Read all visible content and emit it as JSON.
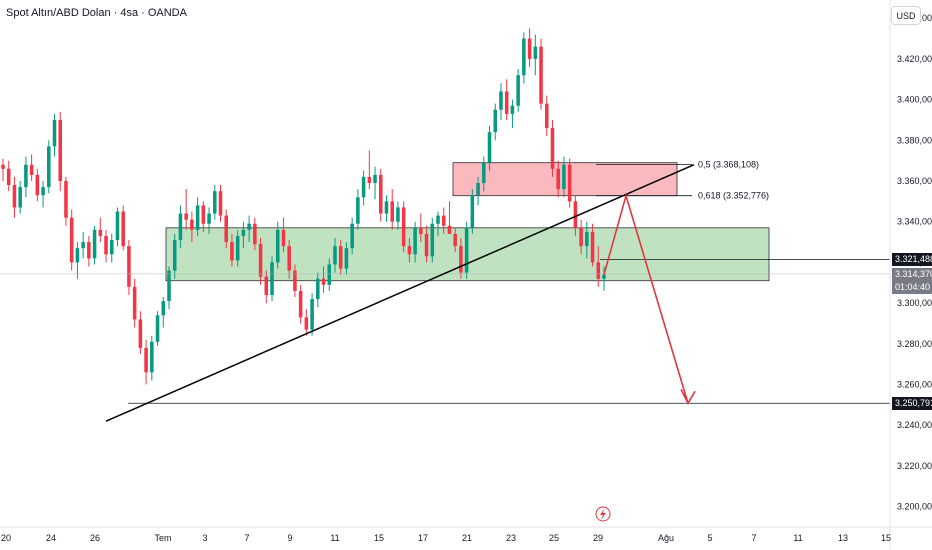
{
  "header": {
    "symbol_title": "Spot Altın/ABD Dolan · 4sa · OANDA"
  },
  "currency_button": {
    "label": "USD"
  },
  "chart_data": {
    "type": "candlestick",
    "title": "Spot Altın/ABD Dolan · 4sa · OANDA",
    "currency": "USD",
    "ylim": [
      3190,
      3445
    ],
    "y_ticks": [
      {
        "value": 3200,
        "label": "3.200,000"
      },
      {
        "value": 3220,
        "label": "3.220,000"
      },
      {
        "value": 3240,
        "label": "3.240,000"
      },
      {
        "value": 3260,
        "label": "3.260,000"
      },
      {
        "value": 3280,
        "label": "3.280,000"
      },
      {
        "value": 3300,
        "label": "3.300,000"
      },
      {
        "value": 3320,
        "label": "3.320,000"
      },
      {
        "value": 3340,
        "label": "3.340,000"
      },
      {
        "value": 3360,
        "label": "3.360,000"
      },
      {
        "value": 3380,
        "label": "3.380,000"
      },
      {
        "value": 3400,
        "label": "3.400,000"
      },
      {
        "value": 3420,
        "label": "3.420,000"
      },
      {
        "value": 3440,
        "label": "3.440,000"
      }
    ],
    "x_ticks": [
      "20",
      "24",
      "26",
      "Tem",
      "3",
      "7",
      "9",
      "11",
      "15",
      "17",
      "21",
      "23",
      "25",
      "29",
      "Ağu",
      "5",
      "7",
      "11",
      "13",
      "15"
    ],
    "candles_ohlc": [
      [
        3368,
        3371,
        3360,
        3366
      ],
      [
        3366,
        3370,
        3355,
        3358
      ],
      [
        3358,
        3362,
        3342,
        3347
      ],
      [
        3347,
        3360,
        3344,
        3357
      ],
      [
        3357,
        3372,
        3352,
        3368
      ],
      [
        3368,
        3373,
        3360,
        3363
      ],
      [
        3363,
        3366,
        3350,
        3353
      ],
      [
        3353,
        3360,
        3347,
        3357
      ],
      [
        3357,
        3380,
        3354,
        3377
      ],
      [
        3377,
        3393,
        3372,
        3390
      ],
      [
        3390,
        3394,
        3355,
        3360
      ],
      [
        3360,
        3362,
        3338,
        3342
      ],
      [
        3342,
        3346,
        3316,
        3320
      ],
      [
        3320,
        3330,
        3312,
        3327
      ],
      [
        3327,
        3335,
        3322,
        3330
      ],
      [
        3330,
        3333,
        3318,
        3322
      ],
      [
        3322,
        3338,
        3319,
        3336
      ],
      [
        3336,
        3342,
        3330,
        3333
      ],
      [
        3333,
        3336,
        3320,
        3324
      ],
      [
        3324,
        3334,
        3320,
        3331
      ],
      [
        3331,
        3347,
        3328,
        3345
      ],
      [
        3345,
        3348,
        3326,
        3328
      ],
      [
        3328,
        3331,
        3304,
        3308
      ],
      [
        3308,
        3312,
        3288,
        3292
      ],
      [
        3292,
        3296,
        3275,
        3278
      ],
      [
        3278,
        3282,
        3260,
        3266
      ],
      [
        3266,
        3284,
        3262,
        3281
      ],
      [
        3281,
        3296,
        3279,
        3294
      ],
      [
        3294,
        3303,
        3288,
        3301
      ],
      [
        3301,
        3318,
        3297,
        3316
      ],
      [
        3316,
        3334,
        3312,
        3331
      ],
      [
        3331,
        3348,
        3327,
        3344
      ],
      [
        3344,
        3356,
        3336,
        3341
      ],
      [
        3341,
        3345,
        3330,
        3336
      ],
      [
        3336,
        3352,
        3333,
        3348
      ],
      [
        3348,
        3350,
        3335,
        3339
      ],
      [
        3339,
        3347,
        3334,
        3344
      ],
      [
        3344,
        3358,
        3341,
        3355
      ],
      [
        3355,
        3358,
        3340,
        3343
      ],
      [
        3343,
        3346,
        3327,
        3330
      ],
      [
        3330,
        3334,
        3318,
        3321
      ],
      [
        3321,
        3336,
        3318,
        3333
      ],
      [
        3333,
        3340,
        3327,
        3336
      ],
      [
        3336,
        3343,
        3330,
        3339
      ],
      [
        3339,
        3342,
        3326,
        3329
      ],
      [
        3329,
        3332,
        3309,
        3313
      ],
      [
        3313,
        3316,
        3300,
        3304
      ],
      [
        3304,
        3323,
        3301,
        3320
      ],
      [
        3320,
        3340,
        3317,
        3336
      ],
      [
        3336,
        3342,
        3325,
        3328
      ],
      [
        3328,
        3331,
        3312,
        3316
      ],
      [
        3316,
        3319,
        3303,
        3306
      ],
      [
        3306,
        3309,
        3290,
        3293
      ],
      [
        3293,
        3297,
        3284,
        3287
      ],
      [
        3287,
        3305,
        3284,
        3302
      ],
      [
        3302,
        3315,
        3298,
        3312
      ],
      [
        3312,
        3318,
        3305,
        3309
      ],
      [
        3309,
        3322,
        3306,
        3319
      ],
      [
        3319,
        3332,
        3315,
        3328
      ],
      [
        3328,
        3331,
        3314,
        3317
      ],
      [
        3317,
        3330,
        3314,
        3327
      ],
      [
        3327,
        3342,
        3324,
        3339
      ],
      [
        3339,
        3356,
        3336,
        3352
      ],
      [
        3352,
        3365,
        3348,
        3362
      ],
      [
        3362,
        3375,
        3356,
        3359
      ],
      [
        3359,
        3367,
        3351,
        3363
      ],
      [
        3363,
        3366,
        3340,
        3344
      ],
      [
        3344,
        3353,
        3340,
        3350
      ],
      [
        3350,
        3356,
        3336,
        3340
      ],
      [
        3340,
        3350,
        3336,
        3347
      ],
      [
        3347,
        3350,
        3325,
        3328
      ],
      [
        3328,
        3332,
        3320,
        3324
      ],
      [
        3324,
        3340,
        3320,
        3337
      ],
      [
        3337,
        3344,
        3330,
        3334
      ],
      [
        3334,
        3338,
        3320,
        3323
      ],
      [
        3323,
        3342,
        3320,
        3339
      ],
      [
        3339,
        3345,
        3333,
        3343
      ],
      [
        3343,
        3347,
        3334,
        3338
      ],
      [
        3338,
        3350,
        3335,
        3334
      ],
      [
        3334,
        3337,
        3325,
        3328
      ],
      [
        3328,
        3332,
        3312,
        3315
      ],
      [
        3315,
        3340,
        3312,
        3337
      ],
      [
        3337,
        3356,
        3334,
        3353
      ],
      [
        3353,
        3362,
        3348,
        3359
      ],
      [
        3359,
        3372,
        3355,
        3369
      ],
      [
        3369,
        3387,
        3365,
        3384
      ],
      [
        3384,
        3398,
        3380,
        3395
      ],
      [
        3395,
        3408,
        3390,
        3404
      ],
      [
        3404,
        3410,
        3390,
        3393
      ],
      [
        3393,
        3400,
        3386,
        3397
      ],
      [
        3397,
        3415,
        3394,
        3412
      ],
      [
        3412,
        3433,
        3408,
        3430
      ],
      [
        3430,
        3435,
        3416,
        3420
      ],
      [
        3420,
        3432,
        3412,
        3426
      ],
      [
        3426,
        3430,
        3395,
        3398
      ],
      [
        3398,
        3402,
        3382,
        3386
      ],
      [
        3386,
        3390,
        3362,
        3366
      ],
      [
        3366,
        3370,
        3352,
        3356
      ],
      [
        3356,
        3372,
        3352,
        3368
      ],
      [
        3368,
        3371,
        3347,
        3350
      ],
      [
        3350,
        3353,
        3333,
        3337
      ],
      [
        3337,
        3341,
        3324,
        3328
      ],
      [
        3328,
        3340,
        3322,
        3335
      ],
      [
        3335,
        3339,
        3318,
        3320
      ],
      [
        3320,
        3328,
        3308,
        3312
      ],
      [
        3312,
        3318,
        3306,
        3314
      ]
    ],
    "zones": [
      {
        "type": "demand",
        "from": 3311,
        "to": 3337
      },
      {
        "type": "supply",
        "from": 3352.776,
        "to": 3369
      }
    ],
    "fib_levels": [
      {
        "ratio": "0,5",
        "value": 3368.108,
        "label": "0,5 (3.368,108)"
      },
      {
        "ratio": "0,618",
        "value": 3352.776,
        "label": "0,618 (3.352,776)"
      }
    ],
    "horizontal_levels": [
      {
        "value": 3321.488,
        "label": "3.321,488"
      },
      {
        "value": 3250.791,
        "label": "3.250,791"
      }
    ],
    "trendline": {
      "from": 3242,
      "to": 3368
    },
    "forecast_path": [
      3314,
      3352.776,
      3250.791
    ],
    "last_price": {
      "value": 3314.37,
      "label": "3.314,370",
      "countdown": "01:04:40"
    },
    "colors": {
      "up": "#089981",
      "down": "#f23645",
      "demand_fill": "#a5d6a7",
      "supply_fill": "#f7a1a8",
      "forecast": "#e0363f",
      "line": "#000000"
    }
  }
}
